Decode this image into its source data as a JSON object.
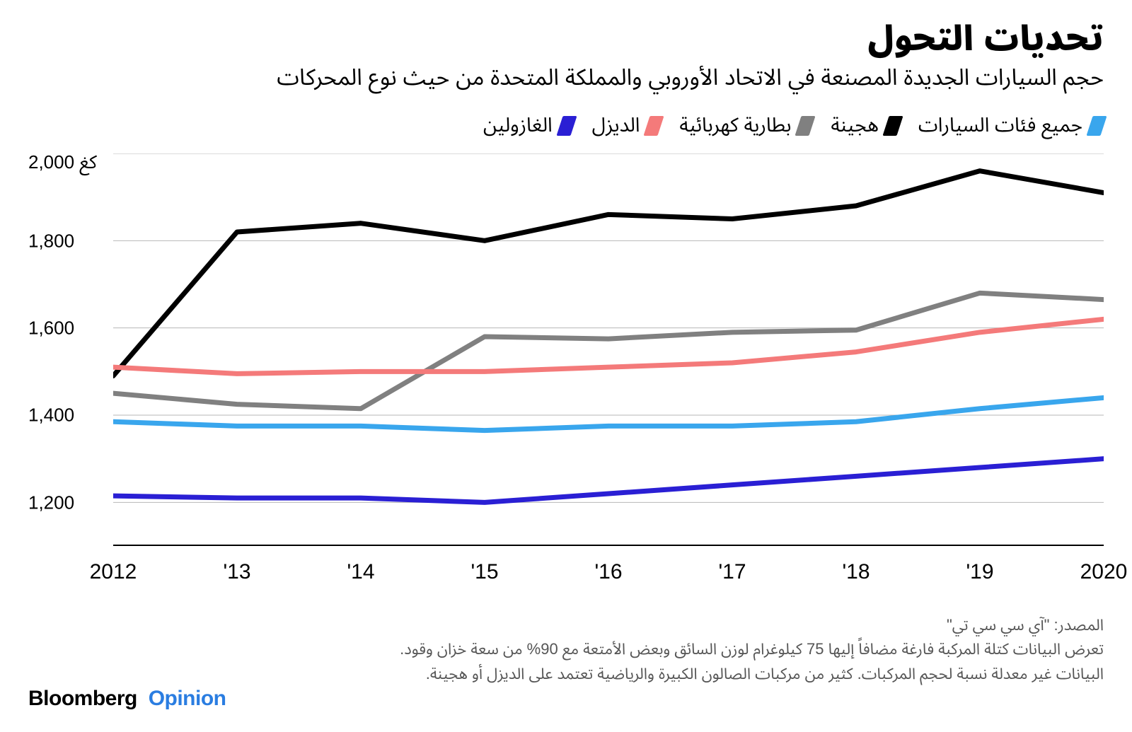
{
  "title": "تحديات التحول",
  "subtitle": "حجم السيارات الجديدة المصنعة في الاتحاد الأوروبي والمملكة المتحدة من حيث نوع المحركات",
  "legend": [
    {
      "label": "جميع فئات السيارات",
      "color": "#39a6ed"
    },
    {
      "label": "هجينة",
      "color": "#000000"
    },
    {
      "label": "بطارية كهربائية",
      "color": "#808080"
    },
    {
      "label": "الديزل",
      "color": "#f47a7a"
    },
    {
      "label": "الغازولين",
      "color": "#2a1fd4"
    }
  ],
  "chart": {
    "type": "line",
    "background_color": "#ffffff",
    "grid_color": "#b7b7b7",
    "axis_color": "#000000",
    "line_width": 7,
    "y": {
      "unit_label": "2,000 كغ",
      "min": 1100,
      "max": 2000,
      "ticks": [
        {
          "v": 1800,
          "label": "1,800"
        },
        {
          "v": 1600,
          "label": "1,600"
        },
        {
          "v": 1400,
          "label": "1,400"
        },
        {
          "v": 1200,
          "label": "1,200"
        }
      ]
    },
    "x": {
      "categories": [
        "2012",
        "'13",
        "'14",
        "'15",
        "'16",
        "'17",
        "'18",
        "'19",
        "2020"
      ]
    },
    "series": [
      {
        "key": "hybrid",
        "color": "#000000",
        "values": [
          1490,
          1820,
          1840,
          1800,
          1860,
          1850,
          1880,
          1960,
          1910
        ]
      },
      {
        "key": "bev",
        "color": "#808080",
        "values": [
          1450,
          1425,
          1415,
          1580,
          1575,
          1590,
          1595,
          1680,
          1665
        ]
      },
      {
        "key": "diesel",
        "color": "#f47a7a",
        "values": [
          1510,
          1495,
          1500,
          1500,
          1510,
          1520,
          1545,
          1590,
          1620
        ]
      },
      {
        "key": "all",
        "color": "#39a6ed",
        "values": [
          1385,
          1375,
          1375,
          1365,
          1375,
          1375,
          1385,
          1415,
          1440
        ]
      },
      {
        "key": "gasoline",
        "color": "#2a1fd4",
        "values": [
          1215,
          1210,
          1210,
          1200,
          1220,
          1240,
          1260,
          1280,
          1300
        ]
      }
    ]
  },
  "notes": {
    "line1": "المصدر: \"آي سي سي تي\"",
    "line2": "تعرض البيانات كتلة المركبة فارغة مضافاً إليها 75 كيلوغرام لوزن السائق وبعض الأمتعة مع 90% من سعة خزان وقود.",
    "line3": "البيانات غير معدلة نسبة لحجم المركبات. كثير من مركبات الصالون الكبيرة والرياضية تعتمد على الديزل أو هجينة."
  },
  "brand": {
    "part1": "Bloomberg",
    "part2": "Opinion",
    "color2": "#2a7de1"
  }
}
